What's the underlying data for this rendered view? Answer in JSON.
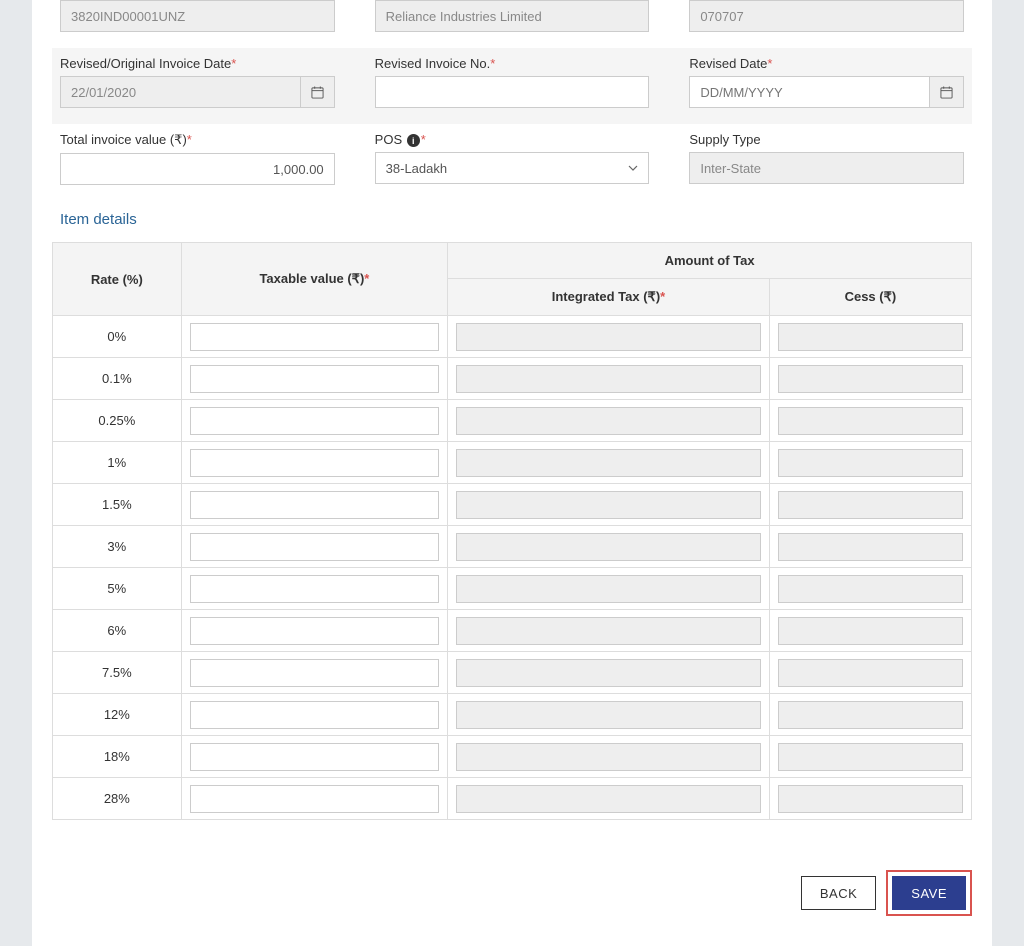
{
  "top_readonly": {
    "gstin": "3820IND00001UNZ",
    "company": "Reliance Industries Limited",
    "code": "070707"
  },
  "fields": {
    "revised_date_label": "Revised/Original Invoice Date",
    "revised_date_value": "22/01/2020",
    "revised_invoice_no_label": "Revised Invoice No.",
    "revised_invoice_no_value": "",
    "final_date_label": "Revised Date",
    "final_date_placeholder": "DD/MM/YYYY",
    "total_invoice_label": "Total invoice value (₹)",
    "total_invoice_value": "1,000.00",
    "pos_label": "POS ",
    "pos_value": "38-Ladakh",
    "supply_type_label": "Supply Type",
    "supply_type_value": "Inter-State"
  },
  "pos_options": [
    "38-Ladakh"
  ],
  "item_details": {
    "title": "Item details",
    "columns": {
      "rate": "Rate (%)",
      "taxable": "Taxable value (₹)",
      "amount_group": "Amount of Tax",
      "integrated": "Integrated Tax (₹)",
      "cess": "Cess (₹)"
    },
    "rates": [
      "0%",
      "0.1%",
      "0.25%",
      "1%",
      "1.5%",
      "3%",
      "5%",
      "6%",
      "7.5%",
      "12%",
      "18%",
      "28%"
    ]
  },
  "buttons": {
    "back": "BACK",
    "save": "SAVE"
  },
  "colors": {
    "page_bg": "#e6e9ec",
    "panel_bg": "#ffffff",
    "link_title": "#2a6496",
    "primary_btn": "#2c3e8f",
    "danger": "#d9534f",
    "border": "#dddddd",
    "readonly_bg": "#eeeeee"
  }
}
